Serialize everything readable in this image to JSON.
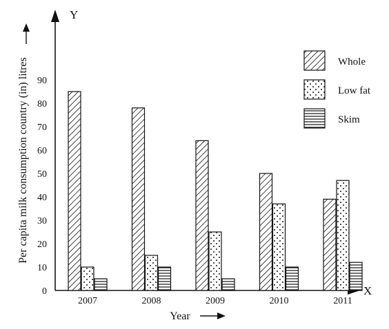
{
  "chart_data": {
    "type": "bar",
    "categories": [
      "2007",
      "2008",
      "2009",
      "2010",
      "2011"
    ],
    "series": [
      {
        "name": "Whole",
        "pattern": "diagonal-hatch",
        "values": [
          85,
          78,
          64,
          50,
          39
        ]
      },
      {
        "name": "Low fat",
        "pattern": "dots",
        "values": [
          10,
          15,
          25,
          37,
          47
        ]
      },
      {
        "name": "Skim",
        "pattern": "horizontal-lines",
        "values": [
          5,
          10,
          5,
          10,
          12
        ]
      }
    ],
    "xlabel": "Year",
    "ylabel": "Per capita milk consumption country (in) litres",
    "x_axis_letter": "X",
    "y_axis_letter": "Y",
    "yticks": [
      0,
      10,
      20,
      30,
      40,
      50,
      60,
      70,
      80,
      90
    ],
    "ylim": [
      0,
      100
    ],
    "grid": false,
    "legend_position": "top-right",
    "colors": {
      "ink": "#111111",
      "background": "#ffffff"
    }
  }
}
